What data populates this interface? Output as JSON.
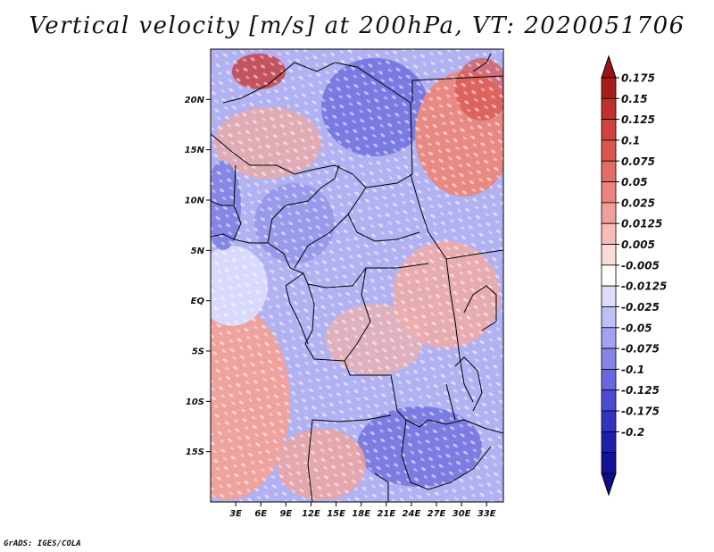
{
  "title": "Vertical velocity [m/s] at 200hPa, VT: 2020051706",
  "footer": "GrADS: IGES/COLA",
  "map": {
    "lat_labels": [
      "20N",
      "15N",
      "10N",
      "5N",
      "EQ",
      "5S",
      "10S",
      "15S"
    ],
    "lat_values": [
      20,
      15,
      10,
      5,
      0,
      -5,
      -10,
      -15
    ],
    "lon_labels": [
      "3E",
      "6E",
      "9E",
      "12E",
      "15E",
      "18E",
      "21E",
      "24E",
      "27E",
      "30E",
      "33E"
    ],
    "lon_values": [
      3,
      6,
      9,
      12,
      15,
      18,
      21,
      24,
      27,
      30,
      33
    ],
    "lat_range": [
      -20,
      25
    ],
    "lon_range": [
      0,
      35
    ]
  },
  "colorbar": {
    "labels": [
      "0.175",
      "0.15",
      "0.125",
      "0.1",
      "0.075",
      "0.05",
      "0.025",
      "0.0125",
      "0.005",
      "-0.005",
      "-0.0125",
      "-0.025",
      "-0.05",
      "-0.075",
      "-0.1",
      "-0.125",
      "-0.175",
      "-0.2"
    ],
    "colors": [
      "#a81c1c",
      "#c0302c",
      "#d1423d",
      "#dc5650",
      "#e56c66",
      "#ec837d",
      "#f29f9a",
      "#f7bcb8",
      "#fbdad7",
      "#ffffff",
      "#dcdcfb",
      "#bfbff5",
      "#a2a2ee",
      "#8585e6",
      "#6868dc",
      "#4b4bd0",
      "#3333c2",
      "#1f1fae",
      "#12129a"
    ],
    "top_color": "#9a1414",
    "bottom_color": "#0c0c8c"
  }
}
